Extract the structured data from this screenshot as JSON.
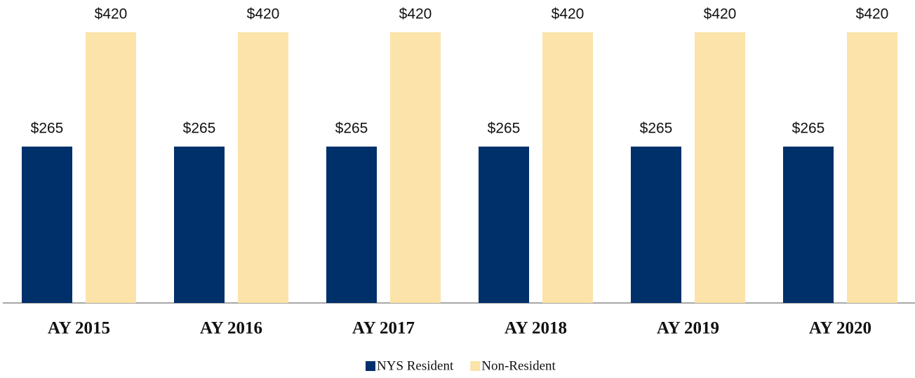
{
  "chart_data": {
    "type": "bar",
    "categories": [
      "AY 2015",
      "AY 2016",
      "AY 2017",
      "AY 2018",
      "AY 2019",
      "AY 2020"
    ],
    "series": [
      {
        "name": "NYS Resident",
        "color": "#00306a",
        "values": [
          265,
          265,
          265,
          265,
          265,
          265
        ],
        "value_labels": [
          "$265",
          "$265",
          "$265",
          "$265",
          "$265",
          "$265"
        ]
      },
      {
        "name": "Non-Resident",
        "color": "#fbe3a9",
        "values": [
          420,
          420,
          420,
          420,
          420,
          420
        ],
        "value_labels": [
          "$420",
          "$420",
          "$420",
          "$420",
          "$420",
          "$420"
        ]
      }
    ],
    "ylim": [
      53,
      420
    ],
    "legend": "bottom"
  }
}
